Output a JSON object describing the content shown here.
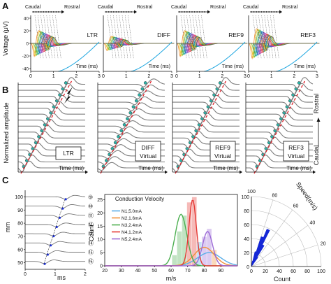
{
  "panels": {
    "a": "A",
    "b": "B",
    "c": "C"
  },
  "colors": {
    "trace": "#7d7d7d",
    "dash": "#e0242c",
    "marker": "#2bb3a8",
    "polar_fill": "#1427d6",
    "traces_a": [
      "#f08a24",
      "#e6c21a",
      "#7cc242",
      "#22a65a",
      "#2aa9c9",
      "#3b6fd1",
      "#6f4fc3",
      "#b54ec1",
      "#e0438c",
      "#e8313a",
      "#9c6b2f",
      "#1e9b8b",
      "#c8b400",
      "#5a5a5a",
      "#20b2e6"
    ]
  },
  "panel_a": {
    "caudal_label": "Caudal",
    "rostral_label": "Rostral",
    "ylabel": "Voltage (μV)",
    "xlabel": "Time (ms)",
    "yticks": [
      "40",
      "20",
      "0",
      "-20",
      "-40"
    ],
    "xticks": [
      "0",
      "1",
      "2",
      "3"
    ],
    "plots": [
      {
        "name": "LTR",
        "label": "LTR"
      },
      {
        "name": "DIFF",
        "label": "DIFF"
      },
      {
        "name": "REF9",
        "label": "REF9"
      },
      {
        "name": "REF3",
        "label": "REF3"
      }
    ]
  },
  "panel_b": {
    "ylabel": "Normalized amplitude",
    "xlabel": "Time (ms)",
    "right_top": "Rostral",
    "right_bottom": "Caudal",
    "boxes": [
      {
        "name": "ltr",
        "lines": [
          "LTR"
        ]
      },
      {
        "name": "diff",
        "lines": [
          "DIFF",
          "Virtual"
        ]
      },
      {
        "name": "ref9",
        "lines": [
          "REF9",
          "Virtual"
        ]
      },
      {
        "name": "ref3",
        "lines": [
          "REF3",
          "Virtual"
        ]
      }
    ]
  },
  "panel_c1": {
    "ylabel": "mm",
    "xlabel": "ms",
    "yticks": [
      "100",
      "90",
      "80",
      "70",
      "60",
      "50"
    ],
    "xticks": [
      "0",
      "1",
      "2"
    ],
    "channels": [
      "⑨",
      "⑩",
      "⑪",
      "⑫",
      "⑬",
      "⑭",
      "⑮",
      "⑯"
    ]
  },
  "panel_c2": {
    "ylabel": "Count",
    "xlabel": "m/s",
    "chart_data": {
      "type": "bar",
      "title": "Conduction Velocity",
      "xlabel": "m/s",
      "ylabel": "Count",
      "xlim": [
        20,
        100
      ],
      "ylim": [
        0,
        27
      ],
      "xticks": [
        20,
        30,
        40,
        50,
        60,
        70,
        80,
        90
      ],
      "yticks": [
        0,
        5,
        10,
        15,
        20,
        25
      ],
      "series": [
        {
          "name": "N1,5.0mA",
          "color": "#5aaee8",
          "peak_x": 83,
          "peak_y": 5,
          "width": 7
        },
        {
          "name": "N2,1.6mA",
          "color": "#f0913a",
          "peak_x": 80,
          "peak_y": 7,
          "width": 6
        },
        {
          "name": "N3,2.4mA",
          "color": "#4caf50",
          "peak_x": 66,
          "peak_y": 19.5,
          "width": 3.5
        },
        {
          "name": "N4,1.2mA",
          "color": "#e53935",
          "peak_x": 73,
          "peak_y": 25,
          "width": 2.2
        },
        {
          "name": "N5,2.4mA",
          "color": "#9c6ad6",
          "peak_x": 82,
          "peak_y": 13,
          "width": 3
        }
      ],
      "bars": [
        {
          "x": 65,
          "count": 13,
          "color": "#4caf50"
        },
        {
          "x": 68,
          "count": 19,
          "color": "#4caf50"
        },
        {
          "x": 71,
          "count": 24,
          "color": "#e53935"
        },
        {
          "x": 74,
          "count": 26,
          "color": "#e53935"
        },
        {
          "x": 77,
          "count": 9,
          "color": "#5aaee8"
        },
        {
          "x": 80,
          "count": 11,
          "color": "#9c6ad6"
        },
        {
          "x": 83,
          "count": 14,
          "color": "#9c6ad6"
        },
        {
          "x": 86,
          "count": 6,
          "color": "#f0913a"
        },
        {
          "x": 62,
          "count": 4,
          "color": "#4caf50"
        }
      ]
    }
  },
  "panel_c3": {
    "chart_data": {
      "type": "polar-histogram",
      "angle_label": "Speed(m/s)",
      "radius_label": "Count",
      "angle_ticks": [
        0,
        20,
        40,
        60,
        80,
        100
      ],
      "radius_ticks": [
        0,
        20,
        40,
        60,
        80,
        100
      ],
      "sectors": [
        {
          "angle_from": 60,
          "angle_to": 65,
          "count": 16
        },
        {
          "angle_from": 65,
          "angle_to": 70,
          "count": 35
        },
        {
          "angle_from": 70,
          "angle_to": 75,
          "count": 58
        },
        {
          "angle_from": 75,
          "angle_to": 80,
          "count": 45
        },
        {
          "angle_from": 80,
          "angle_to": 85,
          "count": 22
        },
        {
          "angle_from": 85,
          "angle_to": 90,
          "count": 8
        }
      ]
    }
  }
}
